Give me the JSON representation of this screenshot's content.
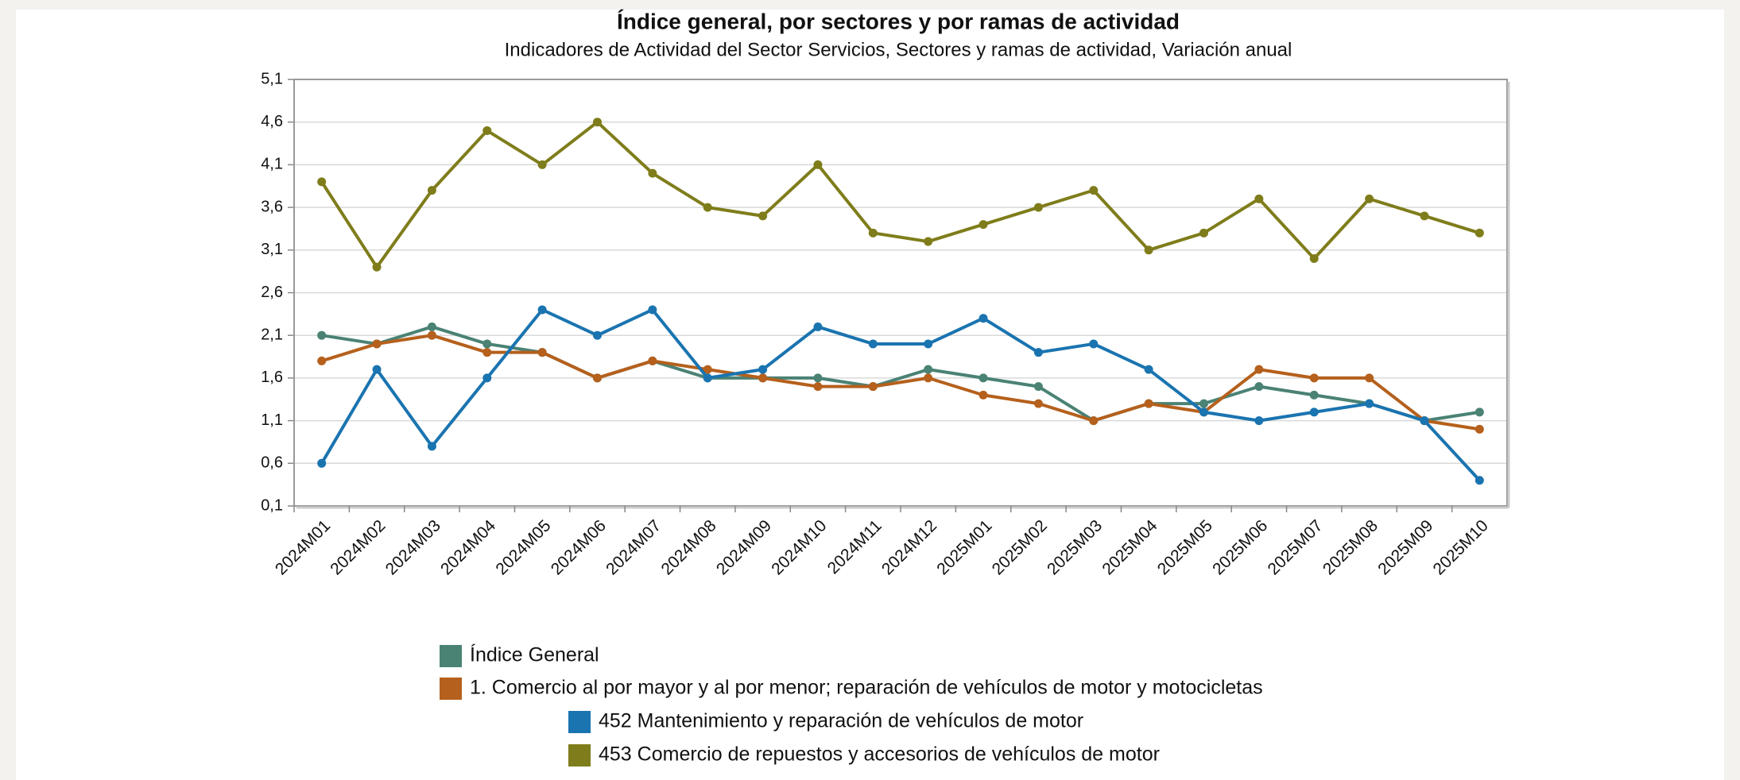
{
  "chart_data": {
    "type": "line",
    "title": "Índice general, por sectores y por ramas de actividad",
    "subtitle": "Indicadores de Actividad del Sector Servicios, Sectores y ramas de actividad, Variación anual",
    "categories": [
      "2024M01",
      "2024M02",
      "2024M03",
      "2024M04",
      "2024M05",
      "2024M06",
      "2024M07",
      "2024M08",
      "2024M09",
      "2024M10",
      "2024M11",
      "2024M12",
      "2025M01",
      "2025M02",
      "2025M03",
      "2025M04",
      "2025M05",
      "2025M06",
      "2025M07",
      "2025M08",
      "2025M09",
      "2025M10"
    ],
    "series": [
      {
        "name": "Índice General",
        "color": "#4a8274",
        "values": [
          2.1,
          2.0,
          2.2,
          2.0,
          1.9,
          1.6,
          1.8,
          1.6,
          1.6,
          1.6,
          1.5,
          1.7,
          1.6,
          1.5,
          1.1,
          1.3,
          1.3,
          1.5,
          1.4,
          1.3,
          1.1,
          1.2
        ]
      },
      {
        "name": "1. Comercio al por mayor y al por menor; reparación de vehículos de motor y motocicletas",
        "color": "#b5601c",
        "values": [
          1.8,
          2.0,
          2.1,
          1.9,
          1.9,
          1.6,
          1.8,
          1.7,
          1.6,
          1.5,
          1.5,
          1.6,
          1.4,
          1.3,
          1.1,
          1.3,
          1.2,
          1.7,
          1.6,
          1.6,
          1.1,
          1.0
        ]
      },
      {
        "name": "452 Mantenimiento y reparación de vehículos de motor",
        "color": "#1a74b0",
        "values": [
          0.6,
          1.7,
          0.8,
          1.6,
          2.4,
          2.1,
          2.4,
          1.6,
          1.7,
          2.2,
          2.0,
          2.0,
          2.3,
          1.9,
          2.0,
          1.7,
          1.2,
          1.1,
          1.2,
          1.3,
          1.1,
          0.4
        ]
      },
      {
        "name": "453 Comercio de repuestos y accesorios de vehículos de motor",
        "color": "#7f7d1b",
        "values": [
          3.9,
          2.9,
          3.8,
          4.5,
          4.1,
          4.6,
          4.0,
          3.6,
          3.5,
          4.1,
          3.3,
          3.2,
          3.4,
          3.6,
          3.8,
          3.1,
          3.3,
          3.7,
          3.0,
          3.7,
          3.5,
          3.3
        ]
      }
    ],
    "ylim": [
      0.1,
      5.1
    ],
    "yticks": [
      {
        "value": 0.1,
        "label": "0,1"
      },
      {
        "value": 0.6,
        "label": "0,6"
      },
      {
        "value": 1.1,
        "label": "1,1"
      },
      {
        "value": 1.6,
        "label": "1,6"
      },
      {
        "value": 2.1,
        "label": "2,1"
      },
      {
        "value": 2.6,
        "label": "2,6"
      },
      {
        "value": 3.1,
        "label": "3,1"
      },
      {
        "value": 3.6,
        "label": "3,6"
      },
      {
        "value": 4.1,
        "label": "4,1"
      },
      {
        "value": 4.6,
        "label": "4,6"
      },
      {
        "value": 5.1,
        "label": "5,1"
      }
    ],
    "grid": true
  }
}
